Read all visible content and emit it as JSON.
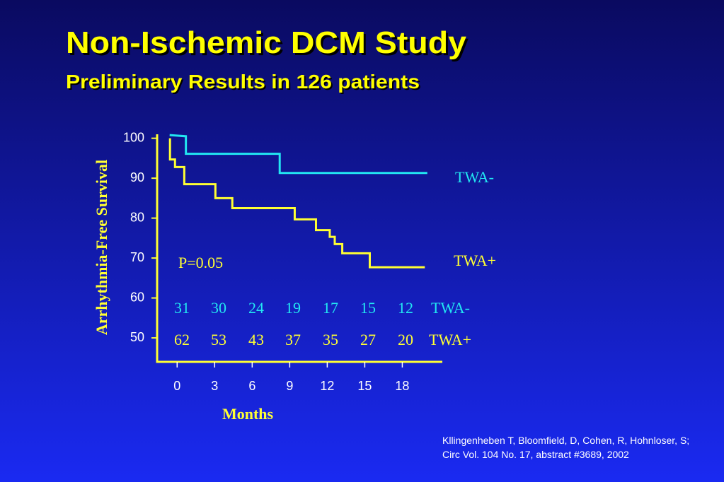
{
  "chart_data": {
    "type": "line",
    "title": "Non-Ischemic DCM Study",
    "subtitle": "Preliminary Results in 126 patients",
    "y_label": "Arrhythmia-Free Survival",
    "x_label": "Months",
    "annotation": "P=0.05",
    "xlim": [
      -1.6,
      21.2
    ],
    "ylim": [
      44,
      101
    ],
    "xticks": [
      0,
      3,
      6,
      9,
      12,
      15,
      18
    ],
    "yticks": [
      50,
      60,
      70,
      80,
      90,
      100
    ],
    "series": [
      {
        "name": "TWA-",
        "color": "#22e6f2",
        "x": [
          -0.6,
          0.7,
          0.7,
          8.2,
          8.2,
          20
        ],
        "values": [
          100.8,
          100.5,
          96.1,
          96.1,
          91.3,
          91.3
        ]
      },
      {
        "name": "TWA+",
        "color": "#ffff33",
        "x": [
          -0.57,
          -0.57,
          -0.17,
          -0.17,
          0.57,
          0.57,
          3.06,
          3.06,
          4.41,
          4.41,
          9.4,
          9.4,
          11.1,
          11.1,
          12.2,
          12.2,
          12.6,
          12.6,
          13.2,
          13.2,
          15.4,
          15.4,
          19.8
        ],
        "values": [
          100,
          94.7,
          94.7,
          92.8,
          92.8,
          88.5,
          88.5,
          85,
          85,
          82.5,
          82.5,
          79.7,
          79.7,
          77,
          77,
          75.3,
          75.3,
          73.5,
          73.5,
          71.2,
          71.2,
          67.7,
          67.7
        ]
      }
    ],
    "at_risk": [
      {
        "name": "TWA-",
        "values": [
          31,
          30,
          24,
          19,
          17,
          15,
          12
        ]
      },
      {
        "name": "TWA+",
        "values": [
          62,
          53,
          43,
          37,
          35,
          27,
          20
        ]
      }
    ],
    "citation": [
      "Kllingenheben T, Bloomfield, D, Cohen, R, Hohnloser, S;",
      "Circ Vol. 104 No. 17, abstract #3689, 2002"
    ]
  }
}
